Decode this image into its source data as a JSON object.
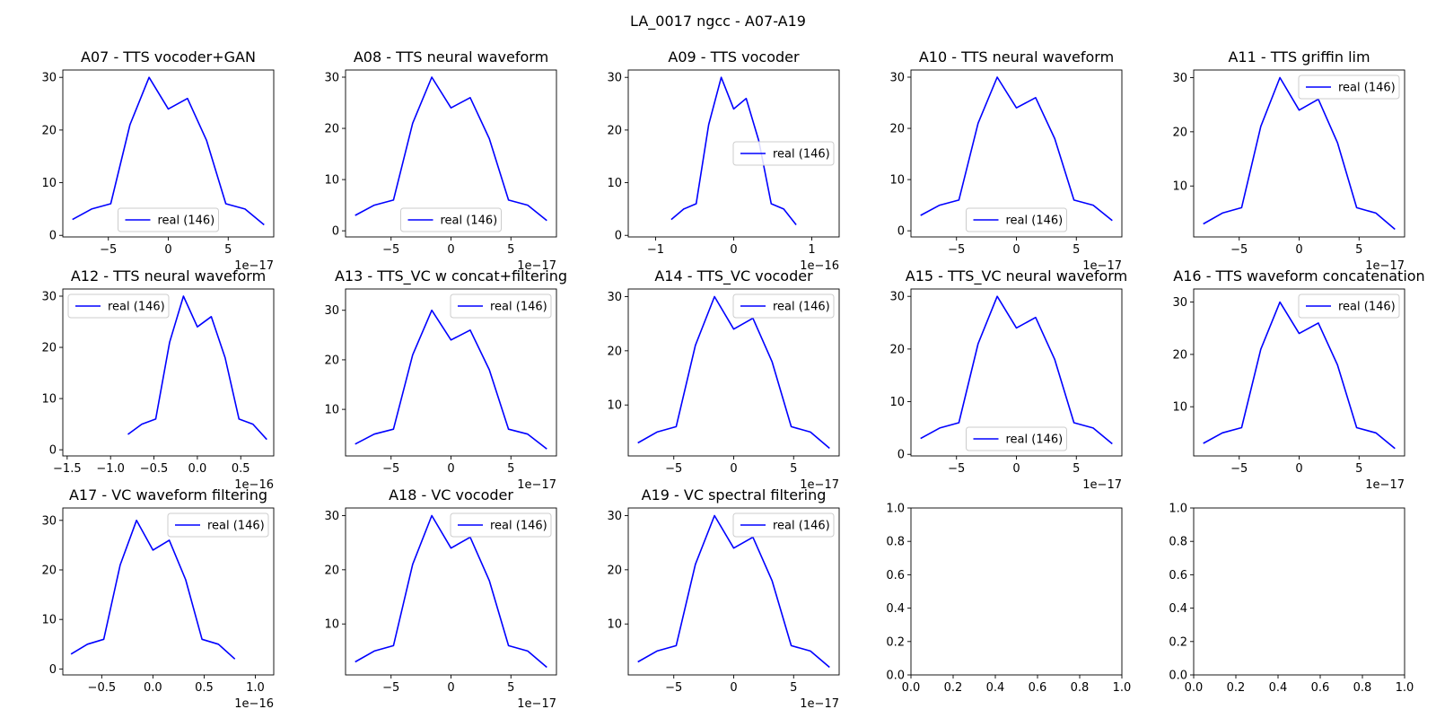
{
  "figure": {
    "suptitle": "LA_0017 ngcc - A07-A19"
  },
  "series_color": "#0000ff",
  "chart_data": [
    {
      "type": "line",
      "title": "A07 - TTS vocoder+GAN",
      "x_scale_label": "1e−17",
      "xlim": [
        -8.8,
        8.8
      ],
      "ylim": [
        -0.3,
        31.4
      ],
      "xticks": [
        {
          "v": -5,
          "label": "−5"
        },
        {
          "v": 0,
          "label": "0"
        },
        {
          "v": 5,
          "label": "5"
        }
      ],
      "yticks": [
        {
          "v": 0,
          "label": "0"
        },
        {
          "v": 10,
          "label": "10"
        },
        {
          "v": 20,
          "label": "20"
        },
        {
          "v": 30,
          "label": "30"
        }
      ],
      "legend": {
        "label": "real (146)",
        "loc": "lower-center"
      },
      "series": [
        {
          "name": "real (146)",
          "x": [
            -8,
            -6.4,
            -4.8,
            -3.2,
            -1.6,
            0,
            1.6,
            3.2,
            4.8,
            6.4,
            8
          ],
          "y": [
            3,
            5,
            6,
            21,
            30,
            24,
            26,
            18,
            6,
            5,
            2
          ]
        }
      ]
    },
    {
      "type": "line",
      "title": "A08 - TTS neural waveform",
      "x_scale_label": "1e−17",
      "xlim": [
        -8.8,
        8.8
      ],
      "ylim": [
        -1.2,
        31.4
      ],
      "xticks": [
        {
          "v": -5,
          "label": "−5"
        },
        {
          "v": 0,
          "label": "0"
        },
        {
          "v": 5,
          "label": "5"
        }
      ],
      "yticks": [
        {
          "v": 0,
          "label": "0"
        },
        {
          "v": 10,
          "label": "10"
        },
        {
          "v": 20,
          "label": "20"
        },
        {
          "v": 30,
          "label": "30"
        }
      ],
      "legend": {
        "label": "real (146)",
        "loc": "lower-center"
      },
      "series": [
        {
          "name": "real (146)",
          "x": [
            -8,
            -6.4,
            -4.8,
            -3.2,
            -1.6,
            0,
            1.6,
            3.2,
            4.8,
            6.4,
            8
          ],
          "y": [
            3,
            5,
            6,
            21,
            30,
            24,
            26,
            18,
            6,
            5,
            2
          ]
        }
      ]
    },
    {
      "type": "line",
      "title": "A09 - TTS vocoder",
      "x_scale_label": "1e−16",
      "xlim": [
        -1.35,
        1.35
      ],
      "ylim": [
        -0.3,
        31.4
      ],
      "xticks": [
        {
          "v": -1,
          "label": "−1"
        },
        {
          "v": 0,
          "label": "0"
        },
        {
          "v": 1,
          "label": "1"
        }
      ],
      "yticks": [
        {
          "v": 0,
          "label": "0"
        },
        {
          "v": 10,
          "label": "10"
        },
        {
          "v": 20,
          "label": "20"
        },
        {
          "v": 30,
          "label": "30"
        }
      ],
      "legend": {
        "label": "real (146)",
        "loc": "center-right"
      },
      "series": [
        {
          "name": "real (146)",
          "x": [
            -0.8,
            -0.64,
            -0.48,
            -0.32,
            -0.16,
            0,
            0.16,
            0.32,
            0.48,
            0.64,
            0.8
          ],
          "y": [
            3,
            5,
            6,
            21,
            30,
            24,
            26,
            18,
            6,
            5,
            2
          ]
        }
      ]
    },
    {
      "type": "line",
      "title": "A10 - TTS neural waveform",
      "x_scale_label": "1e−17",
      "xlim": [
        -8.8,
        8.8
      ],
      "ylim": [
        -1.2,
        31.4
      ],
      "xticks": [
        {
          "v": -5,
          "label": "−5"
        },
        {
          "v": 0,
          "label": "0"
        },
        {
          "v": 5,
          "label": "5"
        }
      ],
      "yticks": [
        {
          "v": 0,
          "label": "0"
        },
        {
          "v": 10,
          "label": "10"
        },
        {
          "v": 20,
          "label": "20"
        },
        {
          "v": 30,
          "label": "30"
        }
      ],
      "legend": {
        "label": "real (146)",
        "loc": "lower-center"
      },
      "series": [
        {
          "name": "real (146)",
          "x": [
            -8,
            -6.4,
            -4.8,
            -3.2,
            -1.6,
            0,
            1.6,
            3.2,
            4.8,
            6.4,
            8
          ],
          "y": [
            3,
            5,
            6,
            21,
            30,
            24,
            26,
            18,
            6,
            5,
            2
          ]
        }
      ]
    },
    {
      "type": "line",
      "title": "A11 - TTS griffin lim",
      "x_scale_label": "1e−17",
      "xlim": [
        -8.8,
        8.8
      ],
      "ylim": [
        0.6,
        31.4
      ],
      "xticks": [
        {
          "v": -5,
          "label": "−5"
        },
        {
          "v": 0,
          "label": "0"
        },
        {
          "v": 5,
          "label": "5"
        }
      ],
      "yticks": [
        {
          "v": 10,
          "label": "10"
        },
        {
          "v": 20,
          "label": "20"
        },
        {
          "v": 30,
          "label": "30"
        }
      ],
      "legend": {
        "label": "real (146)",
        "loc": "upper-right"
      },
      "series": [
        {
          "name": "real (146)",
          "x": [
            -8,
            -6.4,
            -4.8,
            -3.2,
            -1.6,
            0,
            1.6,
            3.2,
            4.8,
            6.4,
            8
          ],
          "y": [
            3,
            5,
            6,
            21,
            30,
            24,
            26,
            18,
            6,
            5,
            2
          ]
        }
      ]
    },
    {
      "type": "line",
      "title": "A12 - TTS neural waveform",
      "x_scale_label": "1e−16",
      "xlim": [
        -1.55,
        0.88
      ],
      "ylim": [
        -1.2,
        31.4
      ],
      "xticks": [
        {
          "v": -1.5,
          "label": "−1.5"
        },
        {
          "v": -1,
          "label": "−1.0"
        },
        {
          "v": -0.5,
          "label": "−0.5"
        },
        {
          "v": 0,
          "label": "0.0"
        },
        {
          "v": 0.5,
          "label": "0.5"
        }
      ],
      "yticks": [
        {
          "v": 0,
          "label": "0"
        },
        {
          "v": 10,
          "label": "10"
        },
        {
          "v": 20,
          "label": "20"
        },
        {
          "v": 30,
          "label": "30"
        }
      ],
      "legend": {
        "label": "real (146)",
        "loc": "upper-left"
      },
      "series": [
        {
          "name": "real (146)",
          "x": [
            -0.8,
            -0.64,
            -0.48,
            -0.32,
            -0.16,
            0,
            0.16,
            0.32,
            0.48,
            0.64,
            0.8
          ],
          "y": [
            3,
            5,
            6,
            21,
            30,
            24,
            26,
            18,
            6,
            5,
            2
          ]
        }
      ]
    },
    {
      "type": "line",
      "title": "A13 - TTS_VC w concat+filtering",
      "x_scale_label": "1e−17",
      "xlim": [
        -8.8,
        8.8
      ],
      "ylim": [
        0.6,
        34.3
      ],
      "xticks": [
        {
          "v": -5,
          "label": "−5"
        },
        {
          "v": 0,
          "label": "0"
        },
        {
          "v": 5,
          "label": "5"
        }
      ],
      "yticks": [
        {
          "v": 10,
          "label": "10"
        },
        {
          "v": 20,
          "label": "20"
        },
        {
          "v": 30,
          "label": "30"
        }
      ],
      "legend": {
        "label": "real (146)",
        "loc": "upper-right"
      },
      "series": [
        {
          "name": "real (146)",
          "x": [
            -8,
            -6.4,
            -4.8,
            -3.2,
            -1.6,
            0,
            1.6,
            3.2,
            4.8,
            6.4,
            8
          ],
          "y": [
            3,
            5,
            6,
            21,
            30,
            24,
            26,
            18,
            6,
            5,
            2
          ]
        }
      ]
    },
    {
      "type": "line",
      "title": "A14 - TTS_VC vocoder",
      "x_scale_label": "1e−17",
      "xlim": [
        -8.8,
        8.8
      ],
      "ylim": [
        0.6,
        31.4
      ],
      "xticks": [
        {
          "v": -5,
          "label": "−5"
        },
        {
          "v": 0,
          "label": "0"
        },
        {
          "v": 5,
          "label": "5"
        }
      ],
      "yticks": [
        {
          "v": 10,
          "label": "10"
        },
        {
          "v": 20,
          "label": "20"
        },
        {
          "v": 30,
          "label": "30"
        }
      ],
      "legend": {
        "label": "real (146)",
        "loc": "upper-right"
      },
      "series": [
        {
          "name": "real (146)",
          "x": [
            -8,
            -6.4,
            -4.8,
            -3.2,
            -1.6,
            0,
            1.6,
            3.2,
            4.8,
            6.4,
            8
          ],
          "y": [
            3,
            5,
            6,
            21,
            30,
            24,
            26,
            18,
            6,
            5,
            2
          ]
        }
      ]
    },
    {
      "type": "line",
      "title": "A15 - TTS_VC neural waveform",
      "x_scale_label": "1e−17",
      "xlim": [
        -8.8,
        8.8
      ],
      "ylim": [
        -0.3,
        31.4
      ],
      "xticks": [
        {
          "v": -5,
          "label": "−5"
        },
        {
          "v": 0,
          "label": "0"
        },
        {
          "v": 5,
          "label": "5"
        }
      ],
      "yticks": [
        {
          "v": 0,
          "label": "0"
        },
        {
          "v": 10,
          "label": "10"
        },
        {
          "v": 20,
          "label": "20"
        },
        {
          "v": 30,
          "label": "30"
        }
      ],
      "legend": {
        "label": "real (146)",
        "loc": "lower-center"
      },
      "series": [
        {
          "name": "real (146)",
          "x": [
            -8,
            -6.4,
            -4.8,
            -3.2,
            -1.6,
            0,
            1.6,
            3.2,
            4.8,
            6.4,
            8
          ],
          "y": [
            3,
            5,
            6,
            21,
            30,
            24,
            26,
            18,
            6,
            5,
            2
          ]
        }
      ]
    },
    {
      "type": "line",
      "title": "A16 - TTS waveform concatenation",
      "x_scale_label": "1e−17",
      "xlim": [
        -8.8,
        8.8
      ],
      "ylim": [
        0.6,
        32.5
      ],
      "xticks": [
        {
          "v": -5,
          "label": "−5"
        },
        {
          "v": 0,
          "label": "0"
        },
        {
          "v": 5,
          "label": "5"
        }
      ],
      "yticks": [
        {
          "v": 10,
          "label": "10"
        },
        {
          "v": 20,
          "label": "20"
        },
        {
          "v": 30,
          "label": "30"
        }
      ],
      "legend": {
        "label": "real (146)",
        "loc": "upper-right"
      },
      "series": [
        {
          "name": "real (146)",
          "x": [
            -8,
            -6.4,
            -4.8,
            -3.2,
            -1.6,
            0,
            1.6,
            3.2,
            4.8,
            6.4,
            8
          ],
          "y": [
            3,
            5,
            6,
            21,
            30,
            24,
            26,
            18,
            6,
            5,
            2
          ]
        }
      ]
    },
    {
      "type": "line",
      "title": "A17 - VC waveform filtering",
      "x_scale_label": "1e−16",
      "xlim": [
        -0.88,
        1.18
      ],
      "ylim": [
        -1.2,
        32.5
      ],
      "xticks": [
        {
          "v": -0.5,
          "label": "−0.5"
        },
        {
          "v": 0,
          "label": "0.0"
        },
        {
          "v": 0.5,
          "label": "0.5"
        },
        {
          "v": 1,
          "label": "1.0"
        }
      ],
      "yticks": [
        {
          "v": 0,
          "label": "0"
        },
        {
          "v": 10,
          "label": "10"
        },
        {
          "v": 20,
          "label": "20"
        },
        {
          "v": 30,
          "label": "30"
        }
      ],
      "legend": {
        "label": "real (146)",
        "loc": "upper-right"
      },
      "series": [
        {
          "name": "real (146)",
          "x": [
            -0.8,
            -0.64,
            -0.48,
            -0.32,
            -0.16,
            0,
            0.16,
            0.32,
            0.48,
            0.64,
            0.8
          ],
          "y": [
            3,
            5,
            6,
            21,
            30,
            24,
            26,
            18,
            6,
            5,
            2
          ]
        }
      ]
    },
    {
      "type": "line",
      "title": "A18 - VC vocoder",
      "x_scale_label": "1e−17",
      "xlim": [
        -8.8,
        8.8
      ],
      "ylim": [
        0.6,
        31.4
      ],
      "xticks": [
        {
          "v": -5,
          "label": "−5"
        },
        {
          "v": 0,
          "label": "0"
        },
        {
          "v": 5,
          "label": "5"
        }
      ],
      "yticks": [
        {
          "v": 10,
          "label": "10"
        },
        {
          "v": 20,
          "label": "20"
        },
        {
          "v": 30,
          "label": "30"
        }
      ],
      "legend": {
        "label": "real (146)",
        "loc": "upper-right"
      },
      "series": [
        {
          "name": "real (146)",
          "x": [
            -8,
            -6.4,
            -4.8,
            -3.2,
            -1.6,
            0,
            1.6,
            3.2,
            4.8,
            6.4,
            8
          ],
          "y": [
            3,
            5,
            6,
            21,
            30,
            24,
            26,
            18,
            6,
            5,
            2
          ]
        }
      ]
    },
    {
      "type": "line",
      "title": "A19 - VC spectral filtering",
      "x_scale_label": "1e−17",
      "xlim": [
        -8.8,
        8.8
      ],
      "ylim": [
        0.6,
        31.4
      ],
      "xticks": [
        {
          "v": -5,
          "label": "−5"
        },
        {
          "v": 0,
          "label": "0"
        },
        {
          "v": 5,
          "label": "5"
        }
      ],
      "yticks": [
        {
          "v": 10,
          "label": "10"
        },
        {
          "v": 20,
          "label": "20"
        },
        {
          "v": 30,
          "label": "30"
        }
      ],
      "legend": {
        "label": "real (146)",
        "loc": "upper-right"
      },
      "series": [
        {
          "name": "real (146)",
          "x": [
            -8,
            -6.4,
            -4.8,
            -3.2,
            -1.6,
            0,
            1.6,
            3.2,
            4.8,
            6.4,
            8
          ],
          "y": [
            3,
            5,
            6,
            21,
            30,
            24,
            26,
            18,
            6,
            5,
            2
          ]
        }
      ]
    },
    {
      "type": "line",
      "title": "",
      "x_scale_label": "",
      "xlim": [
        0,
        1
      ],
      "ylim": [
        0,
        1
      ],
      "xticks": [
        {
          "v": 0,
          "label": "0.0"
        },
        {
          "v": 0.2,
          "label": "0.2"
        },
        {
          "v": 0.4,
          "label": "0.4"
        },
        {
          "v": 0.6,
          "label": "0.6"
        },
        {
          "v": 0.8,
          "label": "0.8"
        },
        {
          "v": 1,
          "label": "1.0"
        }
      ],
      "yticks": [
        {
          "v": 0,
          "label": "0.0"
        },
        {
          "v": 0.2,
          "label": "0.2"
        },
        {
          "v": 0.4,
          "label": "0.4"
        },
        {
          "v": 0.6,
          "label": "0.6"
        },
        {
          "v": 0.8,
          "label": "0.8"
        },
        {
          "v": 1,
          "label": "1.0"
        }
      ],
      "series": []
    },
    {
      "type": "line",
      "title": "",
      "x_scale_label": "",
      "xlim": [
        0,
        1
      ],
      "ylim": [
        0,
        1
      ],
      "xticks": [
        {
          "v": 0,
          "label": "0.0"
        },
        {
          "v": 0.2,
          "label": "0.2"
        },
        {
          "v": 0.4,
          "label": "0.4"
        },
        {
          "v": 0.6,
          "label": "0.6"
        },
        {
          "v": 0.8,
          "label": "0.8"
        },
        {
          "v": 1,
          "label": "1.0"
        }
      ],
      "yticks": [
        {
          "v": 0,
          "label": "0.0"
        },
        {
          "v": 0.2,
          "label": "0.2"
        },
        {
          "v": 0.4,
          "label": "0.4"
        },
        {
          "v": 0.6,
          "label": "0.6"
        },
        {
          "v": 0.8,
          "label": "0.8"
        },
        {
          "v": 1,
          "label": "1.0"
        }
      ],
      "series": []
    }
  ]
}
